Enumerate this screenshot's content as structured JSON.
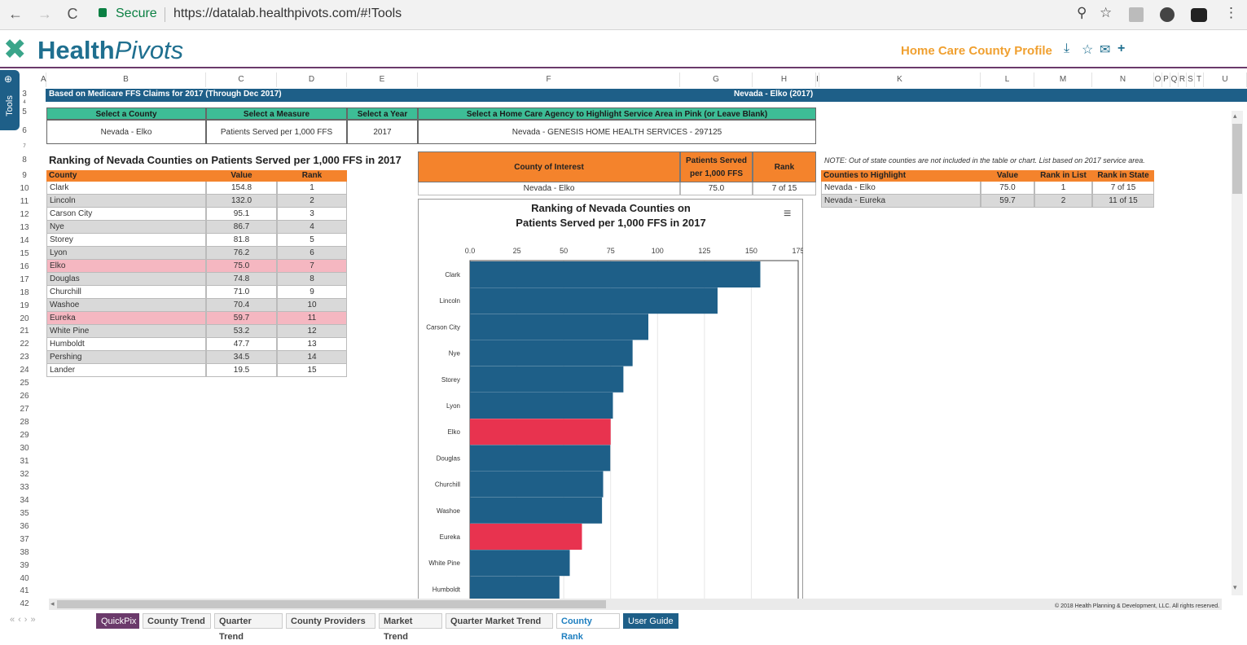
{
  "browser": {
    "back": "←",
    "forward": "→",
    "reload": "C",
    "secure_label": "Secure",
    "url": "https://datalab.healthpivots.com/#!Tools"
  },
  "app": {
    "logo_plain": "Health",
    "logo_italic": "Pivots",
    "profile_title": "Home Care County Profile",
    "tools_label": "Tools"
  },
  "sheet": {
    "columns": [
      "A",
      "B",
      "C",
      "D",
      "E",
      "F",
      "G",
      "H",
      "I",
      "K",
      "L",
      "M",
      "N",
      "O",
      "P",
      "Q",
      "R",
      "S",
      "T",
      "U"
    ],
    "rows": [
      "3",
      "4",
      "5",
      "6",
      "7",
      "8",
      "9",
      "10",
      "11",
      "12",
      "13",
      "14",
      "15",
      "16",
      "17",
      "18",
      "19",
      "20",
      "21",
      "22",
      "23",
      "24",
      "25",
      "26",
      "27",
      "28",
      "29",
      "30",
      "31",
      "32",
      "33",
      "34",
      "35",
      "36",
      "37",
      "38",
      "39",
      "40",
      "41",
      "42"
    ],
    "banner_left": "Based on Medicare FFS Claims for 2017 (Through Dec 2017)",
    "banner_right": "Nevada - Elko (2017)",
    "selectors": {
      "county_header": "Select a County",
      "measure_header": "Select a Measure",
      "year_header": "Select a Year",
      "agency_header": "Select a Home Care Agency to Highlight Service Area in Pink (or Leave Blank)",
      "county_value": "Nevada - Elko",
      "measure_value": "Patients Served per 1,000 FFS",
      "year_value": "2017",
      "agency_value": "Nevada - GENESIS HOME HEALTH SERVICES - 297125"
    },
    "ranking_title": "Ranking of Nevada Counties on Patients Served per 1,000 FFS in 2017",
    "ranking_headers": [
      "County",
      "Value",
      "Rank"
    ],
    "ranking_rows": [
      {
        "county": "Clark",
        "value": "154.8",
        "rank": "1",
        "style": "white"
      },
      {
        "county": "Lincoln",
        "value": "132.0",
        "rank": "2",
        "style": "gray"
      },
      {
        "county": "Carson City",
        "value": "95.1",
        "rank": "3",
        "style": "white"
      },
      {
        "county": "Nye",
        "value": "86.7",
        "rank": "4",
        "style": "gray"
      },
      {
        "county": "Storey",
        "value": "81.8",
        "rank": "5",
        "style": "white"
      },
      {
        "county": "Lyon",
        "value": "76.2",
        "rank": "6",
        "style": "gray"
      },
      {
        "county": "Elko",
        "value": "75.0",
        "rank": "7",
        "style": "pink"
      },
      {
        "county": "Douglas",
        "value": "74.8",
        "rank": "8",
        "style": "gray"
      },
      {
        "county": "Churchill",
        "value": "71.0",
        "rank": "9",
        "style": "white"
      },
      {
        "county": "Washoe",
        "value": "70.4",
        "rank": "10",
        "style": "gray"
      },
      {
        "county": "Eureka",
        "value": "59.7",
        "rank": "11",
        "style": "pink"
      },
      {
        "county": "White Pine",
        "value": "53.2",
        "rank": "12",
        "style": "gray"
      },
      {
        "county": "Humboldt",
        "value": "47.7",
        "rank": "13",
        "style": "white"
      },
      {
        "county": "Pershing",
        "value": "34.5",
        "rank": "14",
        "style": "gray"
      },
      {
        "county": "Lander",
        "value": "19.5",
        "rank": "15",
        "style": "white"
      }
    ],
    "interest": {
      "header_county": "County of Interest",
      "header_value": "Patients Served per 1,000 FFS",
      "header_rank": "Rank",
      "county": "Nevada - Elko",
      "value": "75.0",
      "rank": "7 of 15"
    },
    "note": "NOTE: Out of state counties are not included in the table or chart. List based on 2017 service area.",
    "highlight_headers": [
      "Counties to Highlight",
      "Value",
      "Rank in List",
      "Rank in State"
    ],
    "highlight_rows": [
      {
        "county": "Nevada - Elko",
        "value": "75.0",
        "rank_list": "1",
        "rank_state": "7 of 15"
      },
      {
        "county": "Nevada - Eureka",
        "value": "59.7",
        "rank_list": "2",
        "rank_state": "11 of 15"
      }
    ],
    "copyright": "© 2018 Health Planning & Development, LLC. All rights reserved."
  },
  "chart_data": {
    "type": "bar",
    "orientation": "horizontal",
    "title": "Ranking of Nevada Counties on Patients Served per 1,000 FFS in 2017",
    "title_line1": "Ranking of Nevada Counties on",
    "title_line2": "Patients Served per 1,000 FFS in 2017",
    "categories": [
      "Clark",
      "Lincoln",
      "Carson City",
      "Nye",
      "Storey",
      "Lyon",
      "Elko",
      "Douglas",
      "Churchill",
      "Washoe",
      "Eureka",
      "White Pine",
      "Humboldt"
    ],
    "values": [
      154.8,
      132.0,
      95.1,
      86.7,
      81.8,
      76.2,
      75.0,
      74.8,
      71.0,
      70.4,
      59.7,
      53.2,
      47.7
    ],
    "highlighted": [
      "Elko",
      "Eureka"
    ],
    "xlim": [
      0,
      175
    ],
    "xticks": [
      "0.0",
      "25",
      "50",
      "75",
      "100",
      "125",
      "150",
      "175"
    ],
    "bar_color": "#1e5f88",
    "highlight_color": "#e8334f",
    "grid": true
  },
  "tabs": [
    "QuickPix",
    "County Trend",
    "Quarter Trend",
    "County Providers",
    "Market Trend",
    "Quarter Market Trend",
    "County Rank",
    "User Guide"
  ],
  "active_tab": "County Rank",
  "colors": {
    "accent": "#1e5f88",
    "orange": "#f4832c",
    "teal": "#3dbd96",
    "pink": "#f5b7c1"
  }
}
